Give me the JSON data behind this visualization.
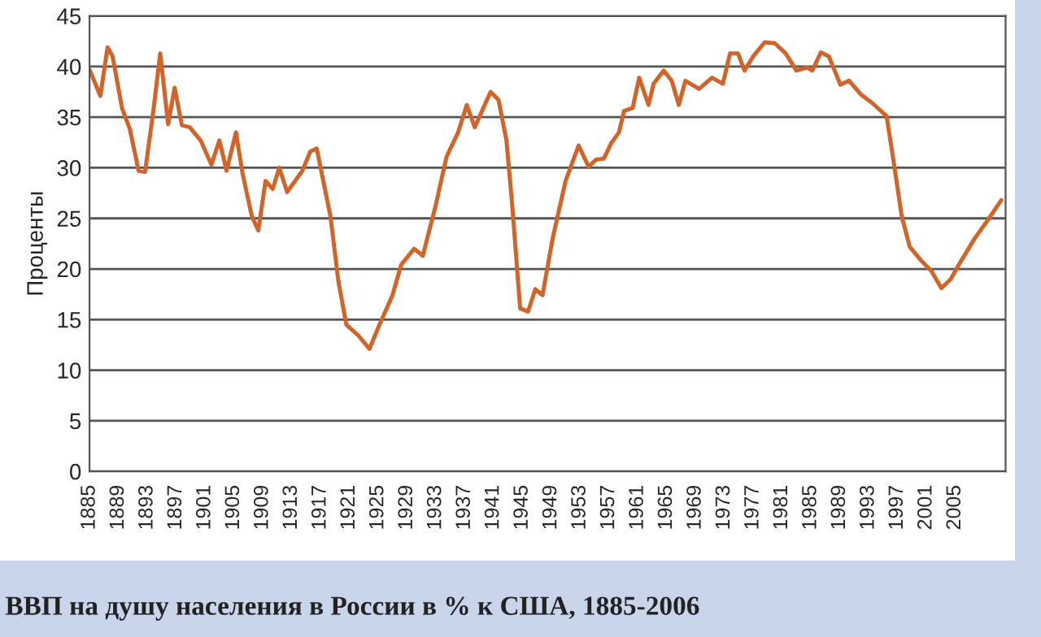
{
  "chart_data": {
    "type": "line",
    "ylabel": "Проценты",
    "annotations": [
      "ВВП на душу населения в России в % к США, 1885-2006"
    ],
    "xlim": [
      1885,
      2012
    ],
    "xticks": [
      1885,
      1889,
      1893,
      1897,
      1901,
      1905,
      1909,
      1913,
      1917,
      1921,
      1925,
      1929,
      1933,
      1937,
      1941,
      1945,
      1949,
      1953,
      1957,
      1961,
      1965,
      1969,
      1973,
      1977,
      1981,
      1985,
      1989,
      1993,
      1997,
      2001,
      2005
    ],
    "ylim": [
      0,
      45
    ],
    "yticks": [
      0,
      5,
      10,
      15,
      20,
      25,
      30,
      35,
      40,
      45
    ],
    "grid": "y",
    "marker": "none",
    "line_style": "solid",
    "series": [
      {
        "color": "#d2642a",
        "x": [
          1885,
          1886.5,
          1887.5,
          1888.2,
          1889.5,
          1890.6,
          1891.8,
          1892.7,
          1893.9,
          1894.8,
          1895.9,
          1896.8,
          1897.8,
          1898.9,
          1900.4,
          1901.9,
          1903,
          1904,
          1905.3,
          1906.2,
          1907.5,
          1908.4,
          1909.4,
          1910.4,
          1911.3,
          1912.4,
          1914.5,
          1915.6,
          1916.5,
          1918.4,
          1919.5,
          1920.6,
          1922.3,
          1923.8,
          1925.2,
          1927,
          1928.2,
          1930,
          1931.2,
          1933,
          1934.5,
          1936.1,
          1937.3,
          1938.4,
          1940.6,
          1941.7,
          1942.8,
          1943.6,
          1944.7,
          1945.8,
          1946.8,
          1947.8,
          1949.2,
          1951,
          1952.8,
          1954.2,
          1955.2,
          1956.3,
          1957.3,
          1958.4,
          1959.1,
          1960.3,
          1961.2,
          1962.5,
          1963.2,
          1964.6,
          1965.7,
          1966.7,
          1967.6,
          1969.5,
          1971.3,
          1972.8,
          1973.8,
          1974.9,
          1975.8,
          1977,
          1978.6,
          1980,
          1981.5,
          1983,
          1984.5,
          1985.2,
          1986.4,
          1987.5,
          1989.1,
          1990.3,
          1992,
          1993.5,
          1995.5,
          1996.5,
          1997.6,
          1998.7,
          2000.2,
          2001.7,
          2003.1,
          2004.4,
          2005.5,
          2007.7,
          2009.6,
          2011.4
        ],
        "values": [
          39.7,
          37.1,
          41.9,
          41,
          35.9,
          33.8,
          29.7,
          29.6,
          35.9,
          41.3,
          34.3,
          37.9,
          34.2,
          34,
          32.7,
          30.3,
          32.7,
          29.7,
          33.5,
          29.5,
          25.2,
          23.8,
          28.7,
          27.9,
          30,
          27.6,
          29.7,
          31.6,
          31.9,
          25.2,
          18.8,
          14.5,
          13.4,
          12.1,
          14.5,
          17.4,
          20.4,
          22,
          21.3,
          26.3,
          31.1,
          33.5,
          36.2,
          34,
          37.5,
          36.7,
          32.7,
          26.3,
          16.1,
          15.8,
          18,
          17.4,
          23,
          28.7,
          32.2,
          30.1,
          30.8,
          30.9,
          32.4,
          33.5,
          35.6,
          35.9,
          38.9,
          36.2,
          38.3,
          39.6,
          38.6,
          36.2,
          38.6,
          37.8,
          38.9,
          38.3,
          41.3,
          41.3,
          39.6,
          41,
          42.4,
          42.3,
          41.3,
          39.6,
          39.9,
          39.6,
          41.4,
          41,
          38.2,
          38.6,
          37.2,
          36.4,
          35.1,
          30.5,
          25.2,
          22.2,
          20.9,
          19.8,
          18.1,
          19,
          20.4,
          23,
          24.9,
          26.8
        ]
      }
    ]
  }
}
